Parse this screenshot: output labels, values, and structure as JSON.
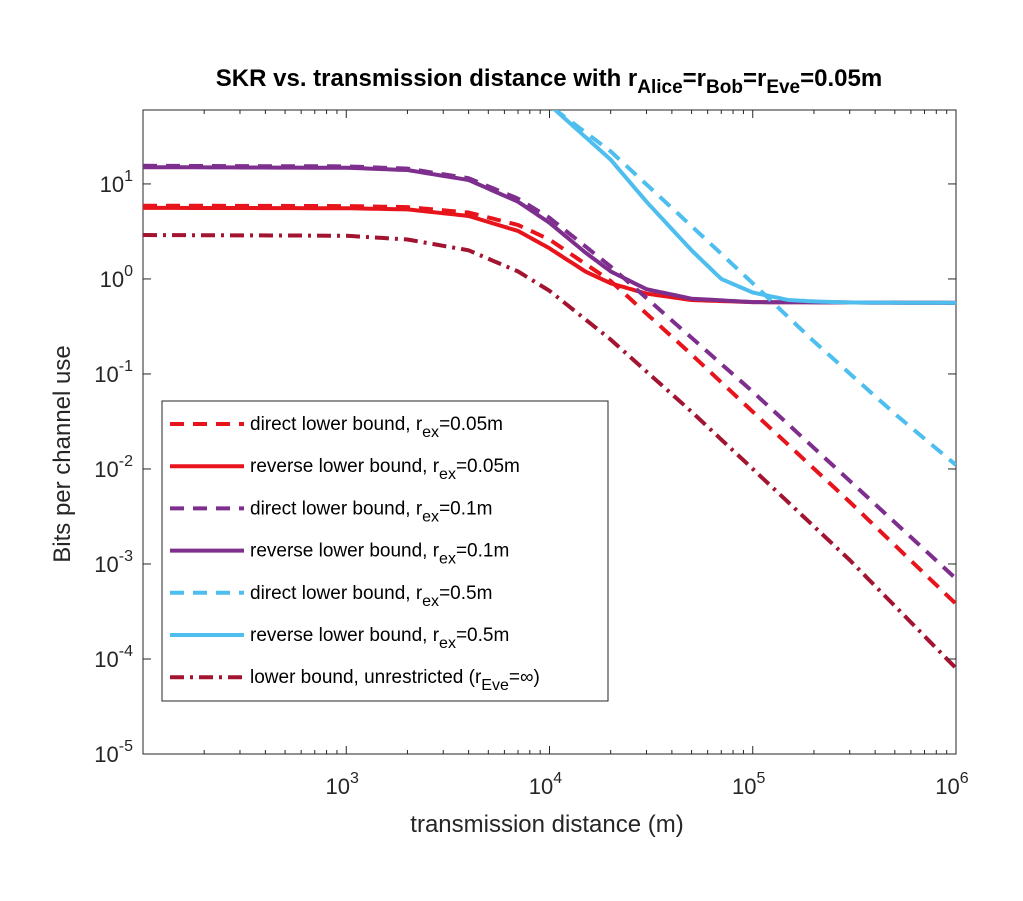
{
  "chart_data": {
    "type": "line",
    "title_main": "SKR vs. transmission distance with r",
    "title_parts": [
      {
        "text": "SKR vs. transmission distance with r",
        "sub": false
      },
      {
        "text": "Alice",
        "sub": true
      },
      {
        "text": "=r",
        "sub": false
      },
      {
        "text": "Bob",
        "sub": true
      },
      {
        "text": "=r",
        "sub": false
      },
      {
        "text": "Eve",
        "sub": true
      },
      {
        "text": "=0.05m",
        "sub": false
      }
    ],
    "xlabel": "transmission distance (m)",
    "ylabel": "Bits per channel use",
    "xscale": "log",
    "yscale": "log",
    "xlim": [
      100,
      1000000
    ],
    "ylim": [
      1e-05,
      60
    ],
    "xticks": [
      {
        "value": 1000,
        "base": "10",
        "exp": "3"
      },
      {
        "value": 10000,
        "base": "10",
        "exp": "4"
      },
      {
        "value": 100000,
        "base": "10",
        "exp": "5"
      },
      {
        "value": 1000000,
        "base": "10",
        "exp": "6"
      }
    ],
    "yticks": [
      {
        "value": 10,
        "base": "10",
        "exp": "1"
      },
      {
        "value": 1,
        "base": "10",
        "exp": "0"
      },
      {
        "value": 0.1,
        "base": "10",
        "exp": "-1"
      },
      {
        "value": 0.01,
        "base": "10",
        "exp": "-2"
      },
      {
        "value": 0.001,
        "base": "10",
        "exp": "-3"
      },
      {
        "value": 0.0001,
        "base": "10",
        "exp": "-4"
      },
      {
        "value": 1e-05,
        "base": "10",
        "exp": "-5"
      }
    ],
    "grid": false,
    "legend_position": "bottom-left",
    "series": [
      {
        "name": "direct lower bound, r_ex=0.05m",
        "legend_parts": [
          {
            "text": "direct lower bound, r",
            "sub": false
          },
          {
            "text": "ex",
            "sub": true
          },
          {
            "text": "=0.05m",
            "sub": false
          }
        ],
        "color": "#E8141C",
        "style": "dashed",
        "x": [
          100,
          1000,
          2000,
          4000,
          7000,
          10000,
          20000,
          50000,
          100000,
          300000,
          1000000
        ],
        "y": [
          5.9,
          5.85,
          5.7,
          5.0,
          3.7,
          2.6,
          0.95,
          0.16,
          0.04,
          0.0045,
          0.00038
        ]
      },
      {
        "name": "reverse lower bound, r_ex=0.05m",
        "legend_parts": [
          {
            "text": "reverse lower bound, r",
            "sub": false
          },
          {
            "text": "ex",
            "sub": true
          },
          {
            "text": "=0.05m",
            "sub": false
          }
        ],
        "color": "#E8141C",
        "style": "solid",
        "x": [
          100,
          1000,
          2000,
          4000,
          7000,
          10000,
          15000,
          20000,
          30000,
          50000,
          100000,
          1000000
        ],
        "y": [
          5.6,
          5.55,
          5.4,
          4.6,
          3.2,
          2.1,
          1.2,
          0.9,
          0.7,
          0.6,
          0.57,
          0.56
        ]
      },
      {
        "name": "direct lower bound, r_ex=0.1m",
        "legend_parts": [
          {
            "text": "direct lower bound, r",
            "sub": false
          },
          {
            "text": "ex",
            "sub": true
          },
          {
            "text": "=0.1m",
            "sub": false
          }
        ],
        "color": "#7E2F8E",
        "style": "dashed",
        "x": [
          100,
          1000,
          2000,
          4000,
          7000,
          10000,
          20000,
          50000,
          100000,
          300000,
          1000000
        ],
        "y": [
          15.5,
          15.3,
          14.5,
          11.5,
          7.0,
          4.4,
          1.35,
          0.24,
          0.065,
          0.0075,
          0.0007
        ]
      },
      {
        "name": "reverse lower bound, r_ex=0.1m",
        "legend_parts": [
          {
            "text": "reverse lower bound, r",
            "sub": false
          },
          {
            "text": "ex",
            "sub": true
          },
          {
            "text": "=0.1m",
            "sub": false
          }
        ],
        "color": "#7E2F8E",
        "style": "solid",
        "x": [
          100,
          1000,
          2000,
          4000,
          7000,
          10000,
          15000,
          20000,
          30000,
          50000,
          100000,
          1000000
        ],
        "y": [
          15,
          14.8,
          14.0,
          11.0,
          6.5,
          3.9,
          1.9,
          1.2,
          0.78,
          0.62,
          0.57,
          0.56
        ]
      },
      {
        "name": "direct lower bound, r_ex=0.5m",
        "legend_parts": [
          {
            "text": "direct lower bound, r",
            "sub": false
          },
          {
            "text": "ex",
            "sub": true
          },
          {
            "text": "=0.5m",
            "sub": false
          }
        ],
        "color": "#4DBEEE",
        "style": "dashed",
        "x": [
          10500,
          20000,
          50000,
          100000,
          200000,
          500000,
          1000000
        ],
        "y": [
          62,
          22,
          3.6,
          0.9,
          0.22,
          0.038,
          0.011
        ]
      },
      {
        "name": "reverse lower bound, r_ex=0.5m",
        "legend_parts": [
          {
            "text": "reverse lower bound, r",
            "sub": false
          },
          {
            "text": "ex",
            "sub": true
          },
          {
            "text": "=0.5m",
            "sub": false
          }
        ],
        "color": "#4DBEEE",
        "style": "solid",
        "x": [
          10500,
          20000,
          30000,
          50000,
          70000,
          100000,
          150000,
          200000,
          300000,
          1000000
        ],
        "y": [
          62,
          18.0,
          6.5,
          2.0,
          1.0,
          0.72,
          0.6,
          0.58,
          0.565,
          0.56
        ]
      },
      {
        "name": "lower bound, unrestricted (r_Eve=∞)",
        "legend_parts": [
          {
            "text": "lower bound, unrestricted (r",
            "sub": false
          },
          {
            "text": "Eve",
            "sub": true
          },
          {
            "text": "=∞)",
            "sub": false
          }
        ],
        "color": "#A2142F",
        "style": "dashdot",
        "x": [
          100,
          1000,
          2000,
          4000,
          7000,
          10000,
          20000,
          50000,
          100000,
          300000,
          1000000
        ],
        "y": [
          2.9,
          2.85,
          2.6,
          2.0,
          1.2,
          0.75,
          0.23,
          0.04,
          0.01,
          0.0011,
          8e-05
        ]
      }
    ]
  }
}
